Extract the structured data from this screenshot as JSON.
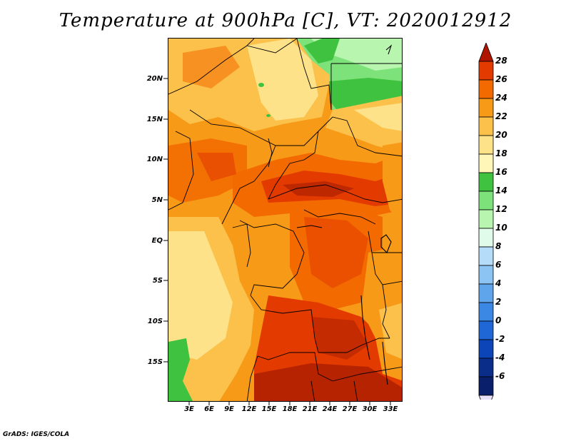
{
  "title": "Temperature at 900hPa [C], VT: 2020012912",
  "footer": "GrADS: IGES/COLA",
  "map": {
    "variable": "Temperature at 900hPa",
    "units": "C",
    "valid_time": "2020012912",
    "lat_labels": [
      "20N",
      "15N",
      "10N",
      "5N",
      "EQ",
      "5S",
      "10S",
      "15S"
    ],
    "lon_labels": [
      "3E",
      "6E",
      "9E",
      "12E",
      "15E",
      "18E",
      "21E",
      "24E",
      "27E",
      "30E",
      "33E"
    ]
  },
  "colorbar": {
    "labels": [
      "28",
      "26",
      "24",
      "22",
      "20",
      "18",
      "16",
      "14",
      "12",
      "10",
      "8",
      "6",
      "4",
      "2",
      "0",
      "-2",
      "-4",
      "-6"
    ],
    "colors": [
      "#a51c00",
      "#e33a00",
      "#f26a00",
      "#f79a18",
      "#fcc14a",
      "#fde289",
      "#fff6b8",
      "#3fc240",
      "#7ee27a",
      "#b8f6b0",
      "#e0fbea",
      "#b5dcf8",
      "#8cc4f3",
      "#5fa5ec",
      "#3a88e4",
      "#1f67d6",
      "#0c45b8",
      "#0b2d8a",
      "#0a1f6c"
    ],
    "top_triangle_color": "#b01500",
    "bottom_triangle_color": "#e6e0f8"
  }
}
